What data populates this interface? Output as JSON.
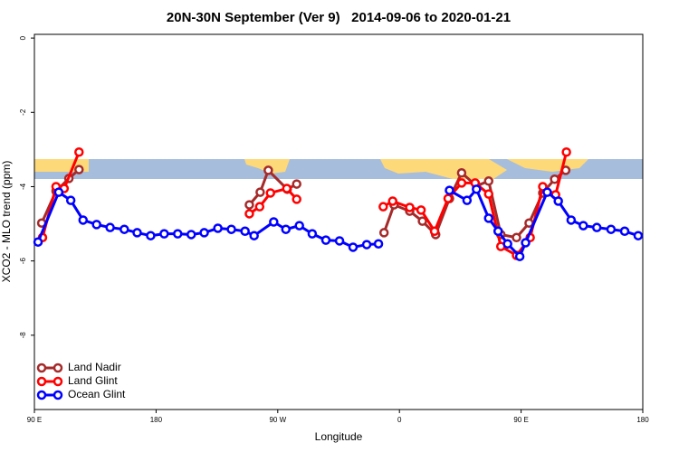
{
  "chart_data": {
    "type": "line",
    "title": "20N-30N September (Ver 9)   2014-09-06 to 2020-01-21",
    "xlabel": "Longitude",
    "ylabel": "XCO2 - MLO trend (ppm)",
    "xlim": [
      90,
      540
    ],
    "ylim": [
      -10,
      0.1
    ],
    "xticks": [
      {
        "value": 90,
        "label": "90 E"
      },
      180,
      {
        "value": 270,
        "label": "90 W"
      },
      {
        "value": 360,
        "label": "0"
      },
      {
        "value": 450,
        "label": "90 E"
      },
      {
        "value": 540,
        "label": "180"
      }
    ],
    "yticks": [
      0,
      -2,
      -4,
      -6,
      -8
    ],
    "legend": "lower left",
    "series": [
      {
        "name": "Land Nadir",
        "color": "#a52a2a",
        "x": [
          95.4,
          106,
          115.5,
          123,
          null,
          249,
          257,
          263,
          277,
          284,
          null,
          348.6,
          356,
          367.6,
          377,
          386.8,
          397,
          406,
          417,
          426,
          435,
          446.6,
          455.9,
          466,
          474.8,
          483
        ],
        "values": [
          -4.98,
          -4.12,
          -3.78,
          -3.54,
          null,
          -4.49,
          -4.15,
          -3.56,
          -4.07,
          -3.93,
          null,
          -5.24,
          -4.49,
          -4.66,
          -4.93,
          -5.29,
          -4.32,
          -3.63,
          -3.98,
          -3.85,
          -5.29,
          -5.37,
          -4.98,
          -4.17,
          -3.8,
          -3.56
        ]
      },
      {
        "name": "Land Glint",
        "color": "#ff0000",
        "x": [
          96,
          106,
          112,
          123,
          null,
          249,
          256.6,
          264.6,
          276.7,
          284,
          null,
          348,
          355,
          367.6,
          376,
          386,
          396,
          406,
          416,
          426,
          435,
          446.6,
          456.7,
          466,
          475.5,
          483.5
        ],
        "values": [
          -5.37,
          -4.0,
          -4.05,
          -3.07,
          null,
          -4.73,
          -4.54,
          -4.17,
          -4.05,
          -4.34,
          null,
          -4.54,
          -4.39,
          -4.56,
          -4.63,
          -5.2,
          -4.32,
          -3.9,
          -3.9,
          -4.2,
          -5.61,
          -5.85,
          -5.37,
          -4.0,
          -4.22,
          -3.07
        ]
      },
      {
        "name": "Ocean Glint",
        "color": "#0000ff",
        "x": [
          92.7,
          108,
          116.9,
          126,
          136,
          146,
          156.5,
          166,
          176,
          186,
          196,
          206,
          215.6,
          225.7,
          235.7,
          245.8,
          252.5,
          267,
          276,
          286,
          295.5,
          305.6,
          315.7,
          325.7,
          335.8,
          344.5,
          null,
          397,
          410,
          417,
          426,
          433,
          440,
          449,
          453.3,
          469.3,
          477.5,
          487,
          496,
          506,
          516.5,
          526.6,
          536.6
        ],
        "values": [
          -5.49,
          -4.15,
          -4.37,
          -4.9,
          -5.02,
          -5.1,
          -5.15,
          -5.24,
          -5.32,
          -5.27,
          -5.27,
          -5.29,
          -5.24,
          -5.12,
          -5.15,
          -5.2,
          -5.32,
          -4.95,
          -5.15,
          -5.05,
          -5.27,
          -5.44,
          -5.46,
          -5.63,
          -5.56,
          -5.54,
          null,
          -4.1,
          -4.37,
          -4.07,
          -4.85,
          -5.2,
          -5.54,
          -5.88,
          -5.51,
          -4.15,
          -4.39,
          -4.9,
          -5.05,
          -5.1,
          -5.15,
          -5.2,
          -5.32
        ]
      }
    ]
  }
}
